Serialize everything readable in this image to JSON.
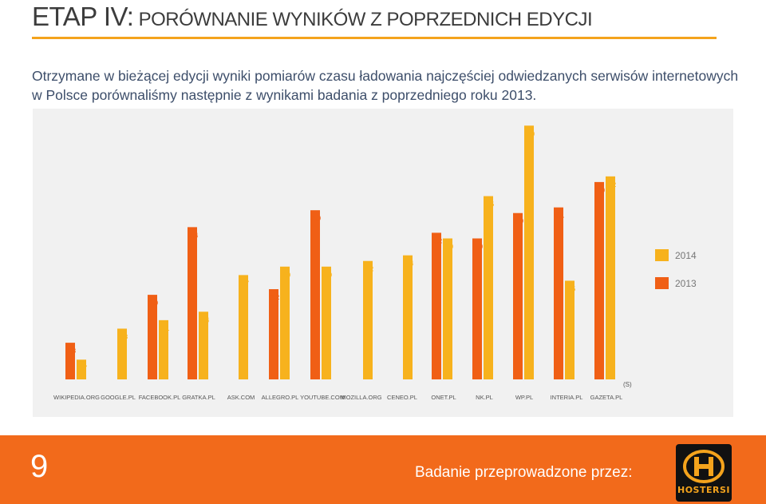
{
  "header": {
    "title_prefix": "ETAP IV:",
    "title_rest": "PORÓWNANIE WYNIKÓW Z POPRZEDNICH EDYCJI"
  },
  "intro": {
    "text": "Otrzymane w bieżącej edycji wyniki pomiarów czasu ładowania najczęściej odwiedzanych serwisów internetowych w Polsce porównaliśmy następnie z wynikami badania z poprzedniego roku 2013."
  },
  "footer": {
    "page_number": "9",
    "sponsor_label": "Badanie przeprowadzone przez:",
    "logo_text": "HOSTERSI"
  },
  "colors": {
    "series_2014": "#f7b21d",
    "series_2013": "#f05f15",
    "accent_rule": "#f4a31c",
    "footer": "#f26a1b"
  },
  "chart_data": {
    "type": "bar",
    "categories": [
      "WIKIPEDIA.ORG",
      "GOOGLE.PL",
      "FACEBOOK.PL",
      "GRATKA.PL",
      "ASK.COM",
      "ALLEGRO.PL",
      "YOUTUBE.COM",
      "MOZILLA.ORG",
      "CENEO.PL",
      "ONET.PL",
      "NK.PL",
      "WP.PL",
      "INTERIA.PL",
      "GAZETA.PL"
    ],
    "series": [
      {
        "name": "2013",
        "values": [
          1.3,
          null,
          3.0,
          5.4,
          null,
          3.2,
          6.0,
          null,
          null,
          5.2,
          5.0,
          5.9,
          6.1,
          7.0
        ]
      },
      {
        "name": "2014",
        "values": [
          0.7,
          1.8,
          2.1,
          2.4,
          3.7,
          4.0,
          4.0,
          4.2,
          4.4,
          5.0,
          6.5,
          9.0,
          3.5,
          7.2
        ]
      }
    ],
    "unit": "(S)",
    "decimal_separator": ",",
    "ylim": [
      0,
      9
    ],
    "grid": false,
    "legend_position": "right"
  }
}
